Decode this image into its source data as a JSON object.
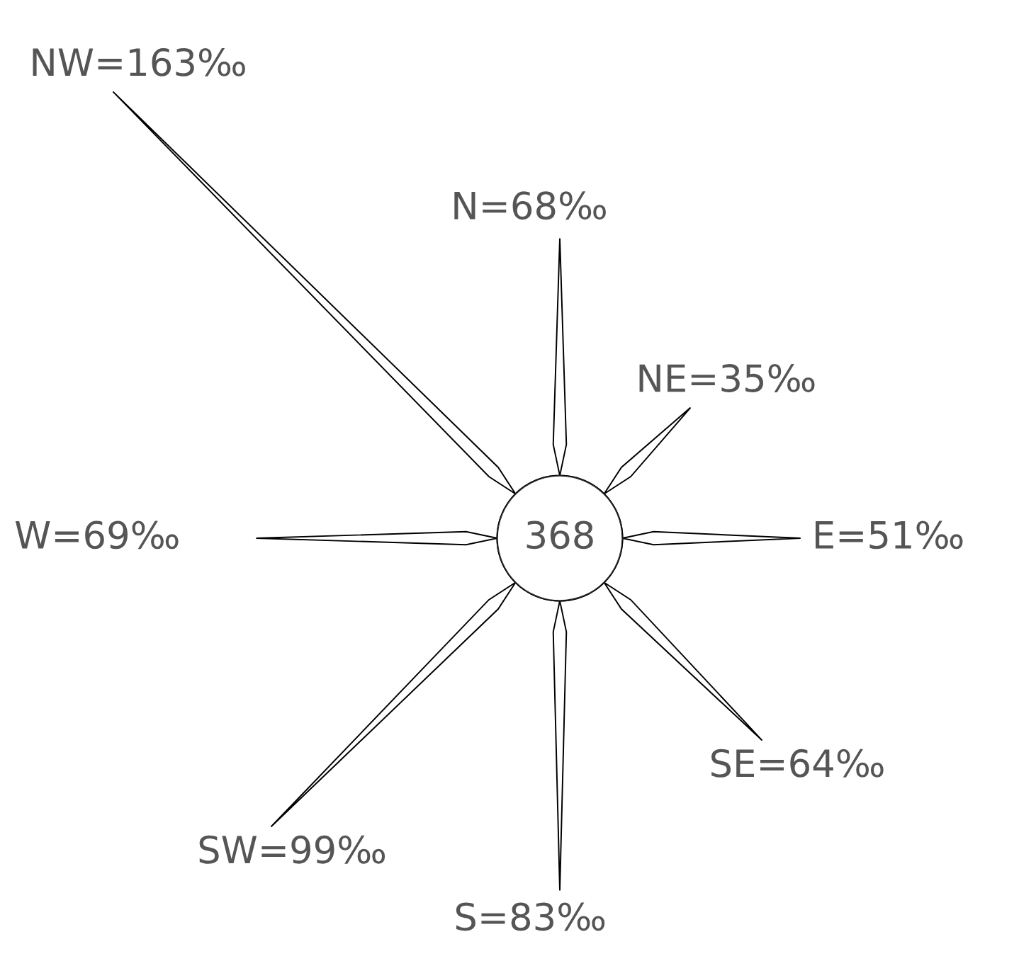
{
  "chart_data": {
    "type": "other",
    "categories": [
      "N",
      "NE",
      "E",
      "SE",
      "S",
      "SW",
      "W",
      "NW"
    ],
    "values": [
      68,
      35,
      51,
      64,
      83,
      99,
      69,
      163
    ],
    "value_labels": [
      "=68‰",
      "=35‰",
      "=51‰",
      "=64‰",
      "=83‰",
      "=99‰",
      "=69‰",
      "=163‰"
    ],
    "annotations": [
      "368"
    ],
    "color": "#000000"
  }
}
